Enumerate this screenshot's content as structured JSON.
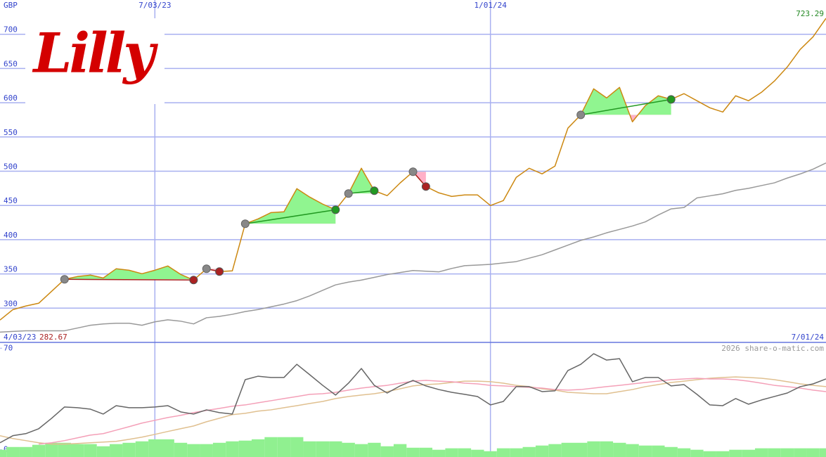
{
  "logo": "Lilly",
  "watermark": "2026 share-o-matic.com",
  "chart_data": [
    {
      "type": "line",
      "y_label": "GBP",
      "categories": [
        "4/03/23",
        null,
        null,
        null,
        null,
        null,
        null,
        null,
        null,
        null,
        null,
        null,
        "7/03/23",
        null,
        null,
        null,
        null,
        null,
        null,
        null,
        null,
        null,
        null,
        null,
        null,
        null,
        null,
        null,
        null,
        null,
        null,
        null,
        null,
        null,
        null,
        null,
        null,
        null,
        "1/01/24",
        null,
        null,
        null,
        null,
        null,
        null,
        null,
        null,
        null,
        null,
        null,
        null,
        null,
        null,
        null,
        null,
        null,
        null,
        null,
        null,
        null,
        null,
        null,
        null,
        null,
        "7/01/24"
      ],
      "series": [
        {
          "color": "#cc8811",
          "values": [
            282.67,
            297.9,
            303.1,
            307.2,
            324.6,
            342.1,
            346.2,
            348.3,
            344.1,
            357.5,
            355.4,
            350.3,
            355.4,
            361.6,
            349.3,
            341.1,
            357.5,
            353.4,
            354.4,
            423.2,
            430.4,
            439.6,
            440.7,
            474.5,
            462.2,
            452,
            443.7,
            467.4,
            504.3,
            471.5,
            464.3,
            482.8,
            499.2,
            477.6,
            468.4,
            463.2,
            465.3,
            465.3,
            449.9,
            457.1,
            491,
            504.3,
            496.1,
            507.4,
            562.8,
            582.3,
            620.3,
            607,
            622.4,
            572.1,
            595.7,
            610.1,
            604.9,
            613.2,
            602.9,
            592.6,
            586.4,
            610.1,
            602.9,
            615.2,
            631.6,
            652.2,
            677.8,
            696.3,
            723.29
          ]
        },
        {
          "color": "#999999",
          "values": [
            265,
            266,
            267,
            267,
            267,
            267,
            271,
            275,
            277,
            278,
            278,
            275,
            280,
            283,
            281,
            277,
            286,
            288,
            291,
            295,
            298,
            302,
            306,
            311,
            318,
            326,
            334,
            338,
            341,
            345,
            349,
            352,
            355,
            354,
            353,
            358,
            362,
            363,
            364,
            366,
            368,
            373,
            378,
            385,
            392,
            399,
            404,
            410,
            415,
            420,
            426,
            436,
            445,
            447,
            461,
            464,
            467,
            472,
            475,
            479,
            483,
            490,
            496,
            503,
            512
          ]
        }
      ],
      "entries": {
        "color": "#888888",
        "values": [
          null,
          null,
          null,
          null,
          null,
          342.1,
          null,
          null,
          null,
          null,
          null,
          null,
          null,
          null,
          null,
          null,
          357.5,
          null,
          null,
          423.2,
          null,
          null,
          null,
          null,
          null,
          null,
          null,
          467.4,
          null,
          null,
          null,
          null,
          499.2,
          null,
          null,
          null,
          null,
          null,
          null,
          null,
          null,
          null,
          null,
          null,
          null,
          582.3,
          null,
          null,
          null,
          null,
          null,
          null,
          null,
          null,
          null,
          null,
          null,
          null,
          null,
          null,
          null,
          null,
          null,
          null,
          null
        ]
      },
      "exits": {
        "values": [
          null,
          null,
          null,
          null,
          null,
          null,
          null,
          null,
          null,
          null,
          null,
          null,
          null,
          null,
          null,
          341.1,
          null,
          353.4,
          null,
          null,
          null,
          null,
          null,
          null,
          null,
          null,
          443.7,
          null,
          null,
          471.5,
          null,
          null,
          null,
          477.6,
          null,
          null,
          null,
          null,
          null,
          null,
          null,
          null,
          null,
          null,
          null,
          null,
          null,
          null,
          null,
          null,
          null,
          null,
          604.9,
          null,
          null,
          null,
          null,
          null,
          null,
          null,
          null,
          null,
          null,
          null,
          null
        ]
      },
      "win_color": "#229922",
      "loss_color": "#aa2222",
      "gain_fill": "#90f590",
      "drop_fill": "#ffb0c8",
      "first_label_color": "#aa2222",
      "last_label_color": "#228822",
      "ylim": [
        250,
        750
      ],
      "yticks": [
        300,
        350,
        400,
        450,
        500,
        550,
        600,
        650,
        700
      ],
      "grid": true,
      "grid_color": "#a8b0f0"
    },
    {
      "type": "line",
      "series": [
        {
          "type": "bar",
          "color": "#90f090",
          "values": [
            0,
            1.9,
            1.9,
            3.4,
            4.8,
            4.8,
            3.9,
            3.9,
            2.4,
            3.9,
            4.8,
            5.8,
            7.2,
            7.2,
            4.8,
            3.9,
            3.9,
            4.8,
            5.8,
            6.3,
            7.2,
            8.7,
            8.7,
            8.7,
            5.8,
            5.8,
            5.8,
            4.8,
            3.9,
            4.8,
            2.4,
            3.9,
            1.4,
            1.4,
            0,
            1,
            1,
            0,
            -1,
            1,
            1,
            1.9,
            2.9,
            3.9,
            4.8,
            4.8,
            5.8,
            5.8,
            4.8,
            3.9,
            2.9,
            2.9,
            1.9,
            1,
            0,
            -1,
            -1,
            0,
            0,
            1,
            1,
            1,
            1,
            1,
            1
          ]
        },
        {
          "color": "#e0c090",
          "values": [
            9.7,
            7.7,
            6.3,
            4.8,
            3.9,
            3.9,
            4.3,
            4.8,
            5.3,
            5.8,
            7.2,
            8.7,
            10.6,
            12.6,
            14.5,
            16.4,
            19.3,
            21.7,
            24.2,
            25.1,
            26.6,
            27.5,
            29,
            30.4,
            31.9,
            33.3,
            35.3,
            36.7,
            37.7,
            38.6,
            40.1,
            42,
            44,
            44.9,
            45.4,
            46.4,
            47.3,
            47.3,
            46.9,
            45.9,
            44.4,
            43.5,
            42,
            41.1,
            39.6,
            39.1,
            38.6,
            38.6,
            40.1,
            41.5,
            43.5,
            44.9,
            46.4,
            47.3,
            48.3,
            49.3,
            49.8,
            50.2,
            49.8,
            49.3,
            48.3,
            46.9,
            45.4,
            44.4,
            43.5
          ]
        },
        {
          "color": "#f4a0b8",
          "values": [
            null,
            null,
            null,
            3.9,
            4.8,
            6.3,
            8.2,
            10.1,
            11.1,
            13.5,
            15.9,
            18.4,
            20.3,
            22.2,
            23.7,
            25.6,
            27.1,
            28.5,
            30,
            30.9,
            32.4,
            33.8,
            35.3,
            36.7,
            38.2,
            38.6,
            39.6,
            41.1,
            42.5,
            43.5,
            44.4,
            45.9,
            47.3,
            47.8,
            47.3,
            46.9,
            45.9,
            45.4,
            44.4,
            44,
            43.5,
            43,
            42.5,
            41.5,
            41.1,
            41.5,
            42.5,
            43.5,
            44.4,
            45.4,
            46.4,
            47.3,
            48.3,
            48.8,
            49.3,
            48.8,
            48.8,
            48.3,
            47.3,
            45.9,
            44.4,
            43.5,
            42.5,
            41.1,
            40.1
          ]
        },
        {
          "color": "#666666",
          "values": [
            4.8,
            9.7,
            11.1,
            14.5,
            21.7,
            29.5,
            29,
            28,
            24.6,
            30.4,
            29,
            29,
            29.5,
            30.4,
            26.1,
            24.6,
            27.5,
            25.6,
            24.6,
            48.3,
            50.7,
            49.8,
            49.8,
            58.9,
            51.7,
            44.4,
            37.7,
            45.9,
            56,
            44.4,
            39.1,
            44,
            47.8,
            44,
            41.5,
            39.6,
            38.2,
            36.7,
            30.9,
            33.3,
            43.5,
            43.5,
            40.1,
            40.6,
            54.6,
            58.9,
            66.2,
            61.8,
            62.8,
            46.9,
            49.8,
            49.8,
            44,
            44.9,
            38.2,
            30.9,
            30.4,
            35.3,
            31.4,
            34.3,
            36.7,
            39.1,
            43.5,
            45.4,
            48.8
          ]
        }
      ],
      "ylim": [
        -5,
        74
      ],
      "yticks": [
        0,
        70
      ]
    }
  ]
}
